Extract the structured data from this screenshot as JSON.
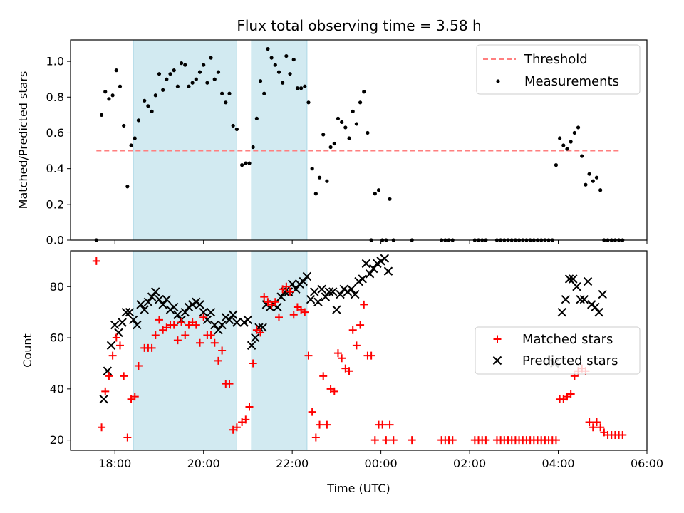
{
  "title": "Flux total observing time = 3.58 h",
  "chart_data": [
    {
      "type": "scatter",
      "ylabel": "Matched/Predicted stars",
      "xlim": [
        "17:00",
        "06:00"
      ],
      "ylim": [
        0,
        1.12
      ],
      "yticks": [
        "0.0",
        "0.2",
        "0.4",
        "0.6",
        "0.8",
        "1.0"
      ],
      "shaded_intervals": [
        [
          "18:25",
          "20:45"
        ],
        [
          "21:05",
          "22:20"
        ]
      ],
      "shade_color": "#add8e6",
      "legend_position": "top-right",
      "threshold": {
        "name": "Threshold",
        "value": 0.5,
        "x_range": [
          "17:35",
          "05:25"
        ],
        "color": "#ff7f7f"
      },
      "series": [
        {
          "name": "Measurements",
          "color": "#000000",
          "marker": "dot",
          "x": [
            "17:35",
            "17:42",
            "17:47",
            "17:52",
            "17:57",
            "18:02",
            "18:07",
            "18:12",
            "18:17",
            "18:22",
            "18:27",
            "18:32",
            "18:40",
            "18:45",
            "18:50",
            "18:55",
            "19:00",
            "19:05",
            "19:10",
            "19:15",
            "19:20",
            "19:25",
            "19:30",
            "19:35",
            "19:40",
            "19:45",
            "19:50",
            "19:55",
            "20:00",
            "20:05",
            "20:10",
            "20:15",
            "20:20",
            "20:25",
            "20:30",
            "20:35",
            "20:40",
            "20:45",
            "20:52",
            "20:57",
            "21:02",
            "21:07",
            "21:12",
            "21:17",
            "21:22",
            "21:27",
            "21:32",
            "21:37",
            "21:42",
            "21:47",
            "21:52",
            "21:57",
            "22:02",
            "22:07",
            "22:12",
            "22:17",
            "22:22",
            "22:27",
            "22:32",
            "22:37",
            "22:42",
            "22:47",
            "22:52",
            "22:57",
            "23:02",
            "23:07",
            "23:12",
            "23:17",
            "23:22",
            "23:27",
            "23:32",
            "23:37",
            "23:42",
            "23:47",
            "23:52",
            "23:57",
            "00:02",
            "00:07",
            "00:12",
            "00:17",
            "00:42",
            "01:22",
            "01:27",
            "01:32",
            "01:37",
            "02:07",
            "02:12",
            "02:17",
            "02:22",
            "02:37",
            "02:42",
            "02:47",
            "02:52",
            "02:57",
            "03:02",
            "03:07",
            "03:12",
            "03:17",
            "03:22",
            "03:27",
            "03:32",
            "03:37",
            "03:42",
            "03:47",
            "03:52",
            "03:57",
            "04:02",
            "04:07",
            "04:12",
            "04:17",
            "04:22",
            "04:27",
            "04:32",
            "04:37",
            "04:42",
            "04:47",
            "04:52",
            "04:57",
            "05:02",
            "05:07",
            "05:12",
            "05:17",
            "05:22",
            "05:27"
          ],
          "y": [
            0.0,
            0.7,
            0.83,
            0.79,
            0.81,
            0.95,
            0.86,
            0.64,
            0.3,
            0.53,
            0.57,
            0.67,
            0.78,
            0.75,
            0.72,
            0.81,
            0.93,
            0.84,
            0.9,
            0.93,
            0.95,
            0.86,
            0.99,
            0.98,
            0.86,
            0.88,
            0.9,
            0.94,
            0.98,
            0.88,
            1.02,
            0.9,
            0.94,
            0.82,
            0.77,
            0.82,
            0.64,
            0.62,
            0.42,
            0.43,
            0.43,
            0.52,
            0.68,
            0.89,
            0.82,
            1.07,
            1.02,
            0.98,
            0.94,
            0.88,
            1.03,
            0.93,
            1.01,
            0.85,
            0.85,
            0.86,
            0.77,
            0.4,
            0.26,
            0.35,
            0.59,
            0.33,
            0.52,
            0.54,
            0.68,
            0.66,
            0.63,
            0.57,
            0.72,
            0.65,
            0.77,
            0.83,
            0.6,
            0.0,
            0.26,
            0.28,
            0.0,
            0.0,
            0.23,
            0.0,
            0.0,
            0.0,
            0.0,
            0.0,
            0.0,
            0.0,
            0.0,
            0.0,
            0.0,
            0.0,
            0.0,
            0.0,
            0.0,
            0.0,
            0.0,
            0.0,
            0.0,
            0.0,
            0.0,
            0.0,
            0.0,
            0.0,
            0.0,
            0.0,
            0.0,
            0.42,
            0.57,
            0.53,
            0.51,
            0.55,
            0.6,
            0.63,
            0.47,
            0.31,
            0.37,
            0.33,
            0.35,
            0.28,
            0.0,
            0.0,
            0.0,
            0.0,
            0.0,
            0.0
          ]
        }
      ]
    },
    {
      "type": "scatter",
      "xlabel": "Time (UTC)",
      "ylabel": "Count",
      "xlim": [
        "17:00",
        "06:00"
      ],
      "xticks": [
        "18:00",
        "20:00",
        "22:00",
        "00:00",
        "02:00",
        "04:00",
        "06:00"
      ],
      "ylim": [
        16,
        94
      ],
      "yticks": [
        "20",
        "40",
        "60",
        "80"
      ],
      "shaded_intervals": [
        [
          "18:25",
          "20:45"
        ],
        [
          "21:05",
          "22:20"
        ]
      ],
      "shade_color": "#add8e6",
      "legend_position": "center-right",
      "series": [
        {
          "name": "Matched stars",
          "color": "#ff0000",
          "marker": "plus",
          "x": [
            "17:35",
            "17:42",
            "17:47",
            "17:52",
            "17:57",
            "18:02",
            "18:07",
            "18:12",
            "18:17",
            "18:22",
            "18:27",
            "18:32",
            "18:40",
            "18:45",
            "18:50",
            "18:55",
            "19:00",
            "19:05",
            "19:10",
            "19:15",
            "19:20",
            "19:25",
            "19:30",
            "19:35",
            "19:40",
            "19:45",
            "19:50",
            "19:55",
            "20:00",
            "20:05",
            "20:10",
            "20:15",
            "20:20",
            "20:25",
            "20:30",
            "20:35",
            "20:40",
            "20:45",
            "20:52",
            "20:57",
            "21:02",
            "21:07",
            "21:12",
            "21:17",
            "21:22",
            "21:27",
            "21:32",
            "21:37",
            "21:42",
            "21:47",
            "21:52",
            "21:57",
            "22:02",
            "22:07",
            "22:12",
            "22:17",
            "22:22",
            "22:27",
            "22:32",
            "22:37",
            "22:42",
            "22:47",
            "22:52",
            "22:57",
            "23:02",
            "23:07",
            "23:12",
            "23:17",
            "23:22",
            "23:27",
            "23:32",
            "23:37",
            "23:42",
            "23:47",
            "23:52",
            "23:57",
            "00:02",
            "00:07",
            "00:12",
            "00:17",
            "00:42",
            "01:22",
            "01:27",
            "01:32",
            "01:37",
            "02:07",
            "02:12",
            "02:17",
            "02:22",
            "02:37",
            "02:42",
            "02:47",
            "02:52",
            "02:57",
            "03:02",
            "03:07",
            "03:12",
            "03:17",
            "03:22",
            "03:27",
            "03:32",
            "03:37",
            "03:42",
            "03:47",
            "03:52",
            "03:57",
            "04:02",
            "04:07",
            "04:12",
            "04:17",
            "04:22",
            "04:27",
            "04:32",
            "04:37",
            "04:42",
            "04:47",
            "04:52",
            "04:57",
            "05:02",
            "05:07",
            "05:12",
            "05:17",
            "05:22",
            "05:27"
          ],
          "y": [
            90,
            25,
            39,
            45,
            53,
            60,
            57,
            45,
            21,
            36,
            37,
            49,
            56,
            56,
            56,
            61,
            67,
            63,
            64,
            65,
            65,
            59,
            66,
            61,
            65,
            66,
            65,
            58,
            68,
            61,
            61,
            58,
            51,
            55,
            42,
            42,
            24,
            25,
            27,
            28,
            33,
            50,
            63,
            62,
            76,
            74,
            73,
            74,
            68,
            79,
            80,
            78,
            69,
            72,
            71,
            70,
            53,
            31,
            21,
            26,
            45,
            26,
            40,
            39,
            54,
            52,
            48,
            47,
            63,
            57,
            65,
            73,
            53,
            53,
            20,
            26,
            26,
            20,
            26,
            20,
            20,
            20,
            20,
            20,
            20,
            20,
            20,
            20,
            20,
            20,
            20,
            20,
            20,
            20,
            20,
            20,
            20,
            20,
            20,
            20,
            20,
            20,
            20,
            20,
            20,
            20,
            36,
            36,
            37,
            38,
            45,
            47,
            48,
            47,
            27,
            25,
            27,
            25,
            23,
            22,
            22,
            22,
            22,
            22
          ]
        },
        {
          "name": "Predicted stars",
          "color": "#000000",
          "marker": "x",
          "x": [
            "17:45",
            "17:50",
            "17:55",
            "18:00",
            "18:05",
            "18:10",
            "18:15",
            "18:20",
            "18:25",
            "18:30",
            "18:35",
            "18:40",
            "18:45",
            "18:50",
            "18:55",
            "19:00",
            "19:05",
            "19:10",
            "19:15",
            "19:20",
            "19:25",
            "19:30",
            "19:35",
            "19:40",
            "19:45",
            "19:50",
            "19:55",
            "20:00",
            "20:05",
            "20:10",
            "20:15",
            "20:20",
            "20:25",
            "20:30",
            "20:35",
            "20:40",
            "20:45",
            "20:55",
            "21:00",
            "21:05",
            "21:10",
            "21:15",
            "21:20",
            "21:25",
            "21:30",
            "21:35",
            "21:40",
            "21:45",
            "21:50",
            "21:55",
            "22:00",
            "22:05",
            "22:10",
            "22:15",
            "22:20",
            "22:25",
            "22:30",
            "22:35",
            "22:40",
            "22:45",
            "22:50",
            "22:55",
            "23:00",
            "23:05",
            "23:10",
            "23:15",
            "23:20",
            "23:25",
            "23:30",
            "23:35",
            "23:40",
            "23:45",
            "23:50",
            "23:55",
            "00:00",
            "00:05",
            "00:10",
            "03:55",
            "04:05",
            "04:10",
            "04:15",
            "04:20",
            "04:25",
            "04:30",
            "04:35",
            "04:40",
            "04:45",
            "04:50",
            "04:55",
            "05:00"
          ],
          "y": [
            36,
            47,
            57,
            65,
            62,
            66,
            70,
            70,
            67,
            65,
            73,
            71,
            74,
            76,
            78,
            75,
            73,
            75,
            71,
            72,
            69,
            67,
            70,
            72,
            73,
            74,
            73,
            70,
            67,
            70,
            65,
            63,
            65,
            68,
            67,
            69,
            66,
            66,
            67,
            57,
            60,
            64,
            64,
            73,
            72,
            73,
            72,
            76,
            78,
            78,
            81,
            79,
            81,
            82,
            84,
            75,
            78,
            74,
            79,
            76,
            78,
            78,
            71,
            77,
            79,
            78,
            79,
            77,
            82,
            83,
            89,
            85,
            87,
            89,
            90,
            91,
            86,
            50,
            70,
            75,
            83,
            83,
            80,
            75,
            75,
            82,
            73,
            72,
            70,
            77
          ]
        }
      ]
    }
  ]
}
